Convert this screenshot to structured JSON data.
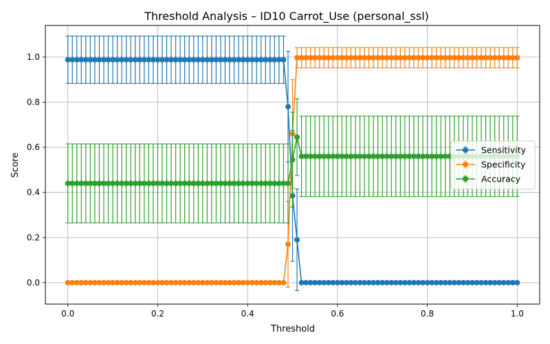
{
  "chart_data": {
    "type": "line",
    "title": "Threshold Analysis – ID10 Carrot_Use (personal_ssl)",
    "xlabel": "Threshold",
    "ylabel": "Score",
    "xlim": [
      -0.05,
      1.05
    ],
    "ylim": [
      -0.095,
      1.14
    ],
    "xticks": [
      0.0,
      0.2,
      0.4,
      0.6,
      0.8,
      1.0
    ],
    "xtick_labels": [
      "0.0",
      "0.2",
      "0.4",
      "0.6",
      "0.8",
      "1.0"
    ],
    "yticks": [
      0.0,
      0.2,
      0.4,
      0.6,
      0.8,
      1.0
    ],
    "ytick_labels": [
      "0.0",
      "0.2",
      "0.4",
      "0.6",
      "0.8",
      "1.0"
    ],
    "grid": true,
    "legend_position": "center-right",
    "x_start": 0.0,
    "x_end": 1.0,
    "x_step": 0.01,
    "series": [
      {
        "name": "Sensitivity",
        "color": "#1f77b4",
        "default_value": 0.0,
        "default_error": 0.0,
        "segments": [
          {
            "x_from": 0.0,
            "x_to": 0.48,
            "value": 0.988,
            "error": 0.105
          }
        ],
        "points": [
          {
            "x": 0.49,
            "value": 0.78,
            "error": 0.245
          },
          {
            "x": 0.5,
            "value": 0.385,
            "error": 0.29
          },
          {
            "x": 0.51,
            "value": 0.19,
            "error": 0.225
          }
        ]
      },
      {
        "name": "Specificity",
        "color": "#ff7f0e",
        "default_value": 0.997,
        "default_error": 0.045,
        "segments": [
          {
            "x_from": 0.0,
            "x_to": 0.48,
            "value": 0.0,
            "error": 0.0
          }
        ],
        "points": [
          {
            "x": 0.49,
            "value": 0.17,
            "error": 0.19
          },
          {
            "x": 0.5,
            "value": 0.66,
            "error": 0.24
          },
          {
            "x": 0.51,
            "value": 0.997,
            "error": 0.045
          }
        ]
      },
      {
        "name": "Accuracy",
        "color": "#2ca02c",
        "default_value": 0.56,
        "default_error": 0.178,
        "segments": [
          {
            "x_from": 0.0,
            "x_to": 0.48,
            "value": 0.44,
            "error": 0.175
          }
        ],
        "points": [
          {
            "x": 0.49,
            "value": 0.44,
            "error": 0.175
          },
          {
            "x": 0.5,
            "value": 0.545,
            "error": 0.21
          },
          {
            "x": 0.51,
            "value": 0.645,
            "error": 0.17
          }
        ]
      }
    ]
  }
}
